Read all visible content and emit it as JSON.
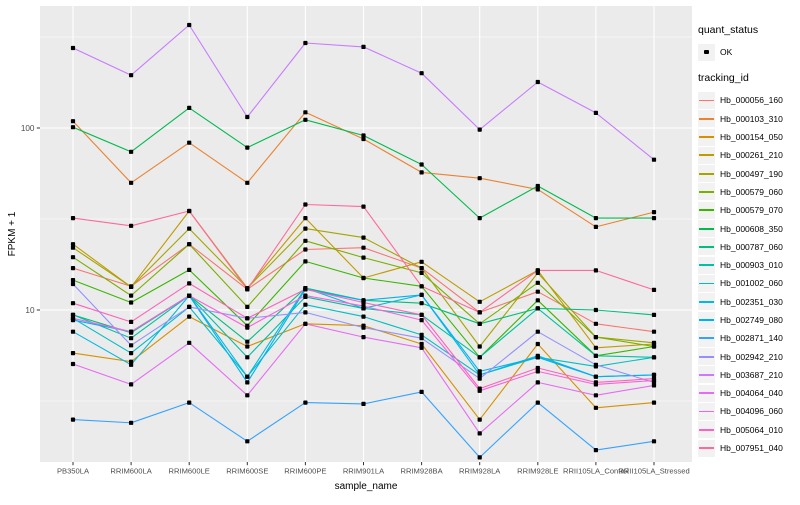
{
  "figure": {
    "panel_bg": "#EBEBEB",
    "grid_color": "#FFFFFF",
    "tick_color": "#333333",
    "tick_label_color": "#4D4D4D",
    "axis_title_color": "#000000",
    "point_color": "#000000",
    "legend_key_bg": "#F2F2F2"
  },
  "legend": {
    "quant_status": {
      "title": "quant_status",
      "items": [
        {
          "label": "OK",
          "marker": "black-point"
        }
      ]
    },
    "tracking": {
      "title": "tracking_id"
    }
  },
  "chart_data": {
    "type": "line",
    "title": "",
    "xlabel": "sample_name",
    "ylabel": "FPKM + 1",
    "y_scale": "log10",
    "grid": true,
    "legend_position": "right",
    "point_shape": "filled-black-point",
    "y_ticks": [
      100,
      10
    ],
    "y_minor_ticks": [
      316.23,
      31.623,
      3.1623
    ],
    "ylim": [
      1.45,
      470
    ],
    "categories": [
      "PB350LA",
      "RRIM600LA",
      "RRIM600LE",
      "RRIM600SE",
      "RRIM600PE",
      "RRIM901LA",
      "RRIM928BA",
      "RRIM928LA",
      "RRIM928LE",
      "RRII105LA_Control",
      "RRII105LA_Stressed"
    ],
    "series": [
      {
        "name": "Hb_000056_160",
        "color": "#F8766D",
        "values": [
          17,
          13.5,
          23,
          13,
          21.5,
          22,
          17,
          9.7,
          12.6,
          8.4,
          7.6
        ]
      },
      {
        "name": "Hb_000103_310",
        "color": "#EA8331",
        "values": [
          109,
          50,
          83,
          50,
          122,
          87,
          57,
          53,
          46,
          28.6,
          34.5
        ]
      },
      {
        "name": "Hb_000154_050",
        "color": "#D89000",
        "values": [
          5.8,
          5.2,
          9.2,
          6.3,
          8.4,
          8.2,
          6.5,
          2.5,
          6.5,
          2.9,
          3.1
        ]
      },
      {
        "name": "Hb_000261_210",
        "color": "#C09B00",
        "values": [
          23,
          13.4,
          35,
          13.2,
          32,
          15,
          18.4,
          11.1,
          16.5,
          6.2,
          6.5
        ]
      },
      {
        "name": "Hb_000497_190",
        "color": "#A3A500",
        "values": [
          22,
          13.4,
          28,
          13.2,
          28,
          25,
          17,
          6.3,
          16,
          7.1,
          6.6
        ]
      },
      {
        "name": "Hb_000579_060",
        "color": "#7CAE00",
        "values": [
          19.5,
          12,
          23,
          10.4,
          24,
          19.4,
          16,
          8.4,
          14.1,
          7.1,
          6.3
        ]
      },
      {
        "name": "Hb_000579_070",
        "color": "#39B600",
        "values": [
          14.6,
          11,
          16.6,
          8.2,
          18.5,
          15,
          13.5,
          5.5,
          11.3,
          5.6,
          6.3
        ]
      },
      {
        "name": "Hb_000608_350",
        "color": "#00BB4E",
        "values": [
          101,
          74,
          129,
          78,
          111,
          91,
          63,
          32,
          48,
          32,
          32
        ]
      },
      {
        "name": "Hb_000787_060",
        "color": "#00BF7D",
        "values": [
          9.4,
          7.5,
          12,
          6.7,
          13.2,
          11.3,
          10.9,
          8.4,
          10.2,
          10,
          9.4
        ]
      },
      {
        "name": "Hb_000903_010",
        "color": "#00C1A3",
        "values": [
          9.4,
          7.0,
          12,
          5.5,
          11.8,
          10.2,
          9.4,
          5.5,
          10.2,
          5.6,
          5.5
        ]
      },
      {
        "name": "Hb_001002_060",
        "color": "#00BFC4",
        "values": [
          9.0,
          5.8,
          10.4,
          4.3,
          10.7,
          9.2,
          7.3,
          4.4,
          5.5,
          4.9,
          5.5
        ]
      },
      {
        "name": "Hb_002351_030",
        "color": "#00BAE0",
        "values": [
          7.6,
          5.0,
          12,
          4.3,
          13.2,
          10.2,
          12.1,
          4.4,
          5.6,
          4.3,
          4.4
        ]
      },
      {
        "name": "Hb_002749_080",
        "color": "#00B0F6",
        "values": [
          8.8,
          7.6,
          12,
          4.0,
          13,
          11.3,
          12.1,
          4.6,
          5.5,
          4.3,
          4.4
        ]
      },
      {
        "name": "Hb_002871_140",
        "color": "#35A2FF",
        "values": [
          2.5,
          2.4,
          3.1,
          1.9,
          3.1,
          3.05,
          3.55,
          1.55,
          3.1,
          1.7,
          1.9
        ]
      },
      {
        "name": "Hb_002942_210",
        "color": "#9590FF",
        "values": [
          13.9,
          6.4,
          10.4,
          9.0,
          9.7,
          8.0,
          7.0,
          4.2,
          7.6,
          5.0,
          4.0
        ]
      },
      {
        "name": "Hb_003687_210",
        "color": "#C77CFF",
        "values": [
          275,
          195,
          368,
          115,
          293,
          279,
          200,
          98,
          179,
          121,
          67
        ]
      },
      {
        "name": "Hb_004064_040",
        "color": "#E76BF3",
        "values": [
          5.05,
          3.9,
          6.6,
          3.4,
          8.4,
          7.1,
          6.2,
          2.1,
          4.0,
          3.4,
          3.85
        ]
      },
      {
        "name": "Hb_004096_060",
        "color": "#FA62DB",
        "values": [
          9.0,
          7.6,
          12,
          8.0,
          12,
          10.5,
          8.8,
          3.6,
          4.6,
          3.9,
          4.1
        ]
      },
      {
        "name": "Hb_005064_010",
        "color": "#FF62BC",
        "values": [
          10.9,
          8.6,
          14,
          9.0,
          13,
          11,
          9.4,
          3.7,
          4.8,
          4.0,
          4.2
        ]
      },
      {
        "name": "Hb_007951_040",
        "color": "#FF6A98",
        "values": [
          32,
          29,
          35,
          13,
          38,
          37,
          13.5,
          9.7,
          16.5,
          16.5,
          12.9
        ]
      }
    ]
  }
}
